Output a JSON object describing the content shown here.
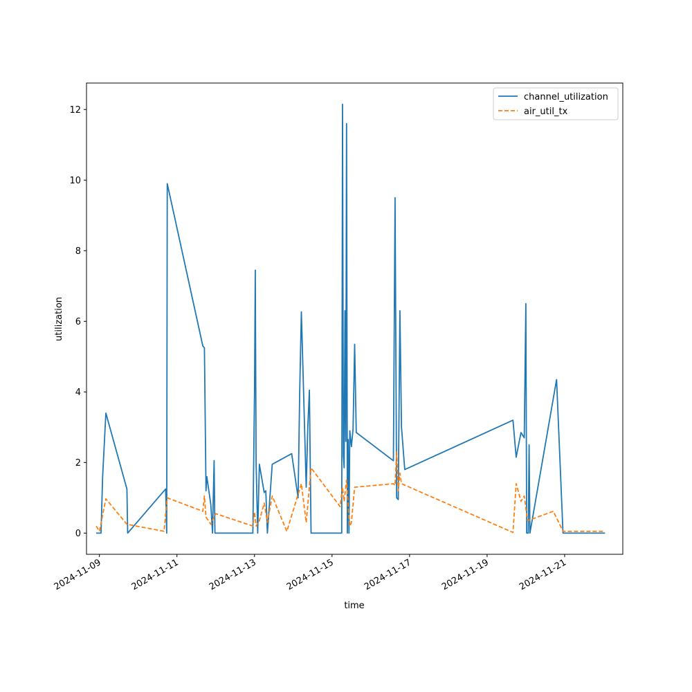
{
  "chart_data": {
    "type": "line",
    "title": "",
    "xlabel": "time",
    "ylabel": "utilization",
    "x_axis_type": "date",
    "xlim": [
      "2024-11-08T16:00",
      "2024-11-22T12:00"
    ],
    "ylim": [
      -0.6,
      12.75
    ],
    "x_ticks": [
      "2024-11-09",
      "2024-11-11",
      "2024-11-13",
      "2024-11-15",
      "2024-11-17",
      "2024-11-19",
      "2024-11-21"
    ],
    "y_ticks": [
      0,
      2,
      4,
      6,
      8,
      10,
      12
    ],
    "y_tick_labels": [
      "0",
      "2",
      "4",
      "6",
      "8",
      "10",
      "12"
    ],
    "grid": false,
    "legend_position": "top-right",
    "series": [
      {
        "name": "channel_utilization",
        "color": "#1f77b4",
        "dash": "solid",
        "points": [
          [
            "2024-11-08T22:00",
            0
          ],
          [
            "2024-11-09T01:00",
            0
          ],
          [
            "2024-11-09T02:00",
            1.6
          ],
          [
            "2024-11-09T04:00",
            3.4
          ],
          [
            "2024-11-09T17:00",
            1.25
          ],
          [
            "2024-11-09T17:30",
            0
          ],
          [
            "2024-11-10T17:00",
            1.25
          ],
          [
            "2024-11-10T17:40",
            0
          ],
          [
            "2024-11-10T18:00",
            9.9
          ],
          [
            "2024-11-11T16:00",
            5.3
          ],
          [
            "2024-11-11T17:00",
            5.25
          ],
          [
            "2024-11-11T18:00",
            1.2
          ],
          [
            "2024-11-11T18:30",
            1.6
          ],
          [
            "2024-11-11T21:00",
            0.8
          ],
          [
            "2024-11-11T22:00",
            0
          ],
          [
            "2024-11-11T23:00",
            2.05
          ],
          [
            "2024-11-11T23:30",
            0
          ],
          [
            "2024-11-12T23:00",
            0
          ],
          [
            "2024-11-13T00:00",
            4.0
          ],
          [
            "2024-11-13T00:30",
            7.45
          ],
          [
            "2024-11-13T01:00",
            2.0
          ],
          [
            "2024-11-13T02:00",
            0
          ],
          [
            "2024-11-13T03:00",
            1.95
          ],
          [
            "2024-11-13T06:00",
            1.15
          ],
          [
            "2024-11-13T07:00",
            1.2
          ],
          [
            "2024-11-13T08:00",
            0
          ],
          [
            "2024-11-13T11:00",
            1.95
          ],
          [
            "2024-11-13T23:00",
            2.25
          ],
          [
            "2024-11-14T03:00",
            1.0
          ],
          [
            "2024-11-14T04:00",
            4.0
          ],
          [
            "2024-11-14T05:00",
            6.27
          ],
          [
            "2024-11-14T08:00",
            1.3
          ],
          [
            "2024-11-14T09:00",
            3.0
          ],
          [
            "2024-11-14T10:00",
            4.05
          ],
          [
            "2024-11-14T11:00",
            0
          ],
          [
            "2024-11-15T06:00",
            0
          ],
          [
            "2024-11-15T06:30",
            12.15
          ],
          [
            "2024-11-15T07:00",
            2.2
          ],
          [
            "2024-11-15T07:30",
            1.85
          ],
          [
            "2024-11-15T08:00",
            6.3
          ],
          [
            "2024-11-15T08:30",
            2.6
          ],
          [
            "2024-11-15T09:00",
            11.6
          ],
          [
            "2024-11-15T09:30",
            0
          ],
          [
            "2024-11-15T10:00",
            2.65
          ],
          [
            "2024-11-15T10:30",
            0
          ],
          [
            "2024-11-15T11:00",
            2.9
          ],
          [
            "2024-11-15T12:00",
            2.45
          ],
          [
            "2024-11-15T13:00",
            2.95
          ],
          [
            "2024-11-15T14:00",
            5.35
          ],
          [
            "2024-11-15T15:00",
            2.85
          ],
          [
            "2024-11-16T14:00",
            2.05
          ],
          [
            "2024-11-16T15:00",
            9.5
          ],
          [
            "2024-11-16T16:00",
            1.0
          ],
          [
            "2024-11-16T17:00",
            0.95
          ],
          [
            "2024-11-16T18:00",
            6.3
          ],
          [
            "2024-11-16T19:00",
            3.0
          ],
          [
            "2024-11-16T21:00",
            1.8
          ],
          [
            "2024-11-19T16:00",
            3.2
          ],
          [
            "2024-11-19T18:00",
            2.15
          ],
          [
            "2024-11-19T21:00",
            2.85
          ],
          [
            "2024-11-19T23:00",
            2.7
          ],
          [
            "2024-11-20T00:00",
            6.5
          ],
          [
            "2024-11-20T00:30",
            0
          ],
          [
            "2024-11-20T01:30",
            0
          ],
          [
            "2024-11-20T02:00",
            2.5
          ],
          [
            "2024-11-20T02:30",
            0
          ],
          [
            "2024-11-20T19:00",
            4.35
          ],
          [
            "2024-11-20T23:00",
            0
          ],
          [
            "2024-11-22T01:00",
            0
          ]
        ]
      },
      {
        "name": "air_util_tx",
        "color": "#ff7f0e",
        "dash": "dashed",
        "points": [
          [
            "2024-11-08T22:00",
            0.2
          ],
          [
            "2024-11-09T00:00",
            0.05
          ],
          [
            "2024-11-09T04:00",
            0.97
          ],
          [
            "2024-11-09T17:00",
            0.25
          ],
          [
            "2024-11-10T16:00",
            0.05
          ],
          [
            "2024-11-10T18:00",
            1.0
          ],
          [
            "2024-11-11T16:00",
            0.62
          ],
          [
            "2024-11-11T17:00",
            1.05
          ],
          [
            "2024-11-11T18:00",
            0.45
          ],
          [
            "2024-11-11T21:00",
            0.25
          ],
          [
            "2024-11-12T00:00",
            0.55
          ],
          [
            "2024-11-12T23:00",
            0.2
          ],
          [
            "2024-11-13T00:00",
            0.6
          ],
          [
            "2024-11-13T01:00",
            0.2
          ],
          [
            "2024-11-13T03:00",
            0.35
          ],
          [
            "2024-11-13T06:00",
            0.85
          ],
          [
            "2024-11-13T08:00",
            0.3
          ],
          [
            "2024-11-13T11:00",
            1.05
          ],
          [
            "2024-11-13T20:00",
            0.05
          ],
          [
            "2024-11-14T05:00",
            1.4
          ],
          [
            "2024-11-14T08:00",
            0.3
          ],
          [
            "2024-11-14T11:00",
            1.85
          ],
          [
            "2024-11-15T05:00",
            0.75
          ],
          [
            "2024-11-15T06:30",
            1.3
          ],
          [
            "2024-11-15T07:30",
            0.9
          ],
          [
            "2024-11-15T09:00",
            1.5
          ],
          [
            "2024-11-15T10:00",
            0.75
          ],
          [
            "2024-11-15T11:00",
            0.2
          ],
          [
            "2024-11-15T12:00",
            0.3
          ],
          [
            "2024-11-15T14:00",
            1.3
          ],
          [
            "2024-11-16T14:00",
            1.4
          ],
          [
            "2024-11-16T15:00",
            1.35
          ],
          [
            "2024-11-16T16:00",
            2.3
          ],
          [
            "2024-11-16T17:00",
            1.2
          ],
          [
            "2024-11-16T18:00",
            1.7
          ],
          [
            "2024-11-16T19:00",
            1.4
          ],
          [
            "2024-11-19T16:00",
            0.02
          ],
          [
            "2024-11-19T18:00",
            1.4
          ],
          [
            "2024-11-19T21:00",
            0.9
          ],
          [
            "2024-11-19T23:00",
            1.05
          ],
          [
            "2024-11-20T01:00",
            0.35
          ],
          [
            "2024-11-20T17:00",
            0.62
          ],
          [
            "2024-11-20T23:00",
            0.05
          ],
          [
            "2024-11-22T01:00",
            0.05
          ]
        ]
      }
    ]
  }
}
